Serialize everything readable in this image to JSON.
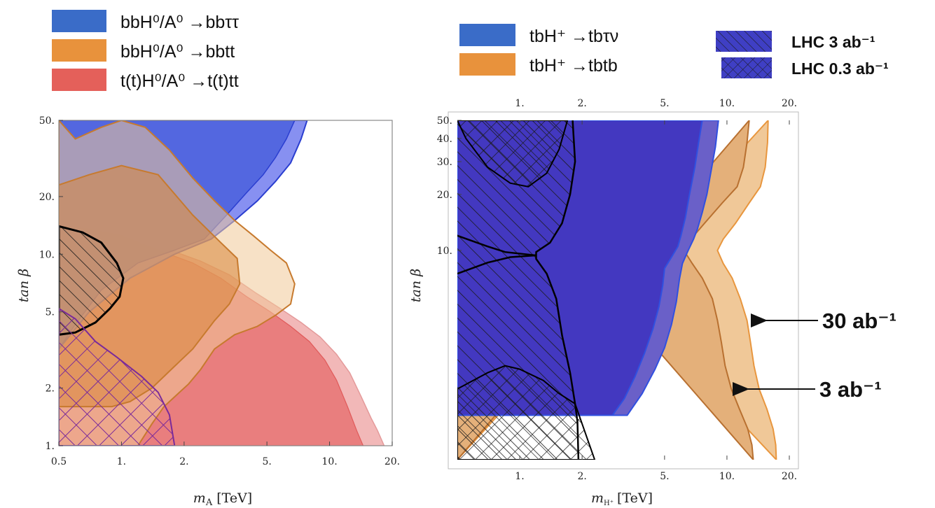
{
  "colors": {
    "blue": "#4a60dd",
    "blue_light": "#7a84f0",
    "blue_dark": "#3f3fc4",
    "orange": "#d9873a",
    "orange_light": "#f0c898",
    "red": "#e87a7a",
    "red_light": "#f2b8b8",
    "hatch": "#1a1a1a",
    "hatch_purple": "#7a2a9a",
    "legend_blue": "#3a6cc8",
    "legend_orange": "#e8923c",
    "legend_red": "#e4605a"
  },
  "chart_data": [
    {
      "type": "area",
      "xlabel": "m_A [TeV]",
      "ylabel": "tan β",
      "x_scale": "log",
      "y_scale": "log",
      "xlim": [
        0.5,
        20
      ],
      "ylim": [
        1,
        50
      ],
      "x_ticks": [
        "0.5",
        "1.",
        "2.",
        "5.",
        "10.",
        "20."
      ],
      "x_tick_values": [
        0.5,
        1,
        2,
        5,
        10,
        20
      ],
      "y_ticks": [
        "1.",
        "2.",
        "5.",
        "10.",
        "20.",
        "50."
      ],
      "y_tick_values": [
        1,
        2,
        5,
        10,
        20,
        50
      ],
      "legend_placement": "top",
      "series": [
        {
          "name": "bbH⁰/A⁰ →bbττ",
          "color_key": "blue",
          "boundary_3ab": [
            [
              0.5,
              3.2
            ],
            [
              0.6,
              4.3
            ],
            [
              0.8,
              6.5
            ],
            [
              1.2,
              9
            ],
            [
              1.8,
              10.5
            ],
            [
              2.5,
              12
            ],
            [
              3.2,
              16
            ],
            [
              4,
              21
            ],
            [
              4.8,
              26
            ],
            [
              5.5,
              32
            ],
            [
              6.2,
              40
            ],
            [
              6.8,
              50
            ]
          ],
          "boundary_30ab": [
            [
              0.5,
              3.2
            ],
            [
              0.7,
              5
            ],
            [
              1.1,
              7.5
            ],
            [
              1.8,
              10
            ],
            [
              2.7,
              12
            ],
            [
              3.5,
              15
            ],
            [
              4.5,
              19
            ],
            [
              5.5,
              24
            ],
            [
              6.5,
              30
            ],
            [
              7.3,
              40
            ],
            [
              7.8,
              50
            ]
          ]
        },
        {
          "name": "bbH⁰/A⁰ →bbtt",
          "color_key": "orange",
          "boundary_3ab": [
            [
              0.5,
              23
            ],
            [
              0.7,
              26
            ],
            [
              1,
              29
            ],
            [
              1.5,
              26
            ],
            [
              2.2,
              16
            ],
            [
              3,
              11.5
            ],
            [
              3.6,
              9.5
            ],
            [
              3.7,
              7
            ],
            [
              3.3,
              5.5
            ],
            [
              2.8,
              4.5
            ],
            [
              2.2,
              3.2
            ],
            [
              1.8,
              2.6
            ],
            [
              1.4,
              2.0
            ],
            [
              1.1,
              1.7
            ],
            [
              0.9,
              1.6
            ],
            [
              0.7,
              1.6
            ],
            [
              0.5,
              1.6
            ]
          ],
          "boundary_30ab": [
            [
              0.5,
              50
            ],
            [
              0.6,
              40
            ],
            [
              0.8,
              46
            ],
            [
              1,
              50
            ],
            [
              1.3,
              46
            ],
            [
              1.7,
              35
            ],
            [
              2.2,
              25
            ],
            [
              2.8,
              19
            ],
            [
              3.5,
              15
            ],
            [
              4.3,
              12.5
            ],
            [
              5.2,
              10.5
            ],
            [
              6.2,
              9
            ],
            [
              6.8,
              7
            ],
            [
              6.5,
              5.5
            ],
            [
              5.5,
              4.8
            ],
            [
              4.5,
              4.2
            ],
            [
              3.5,
              3.8
            ],
            [
              2.8,
              3.2
            ],
            [
              2.4,
              2.5
            ],
            [
              2.1,
              2.1
            ],
            [
              1.8,
              1.8
            ],
            [
              1.6,
              1.6
            ],
            [
              1.4,
              1.3
            ],
            [
              1.2,
              1
            ]
          ]
        },
        {
          "name": "t(t)H⁰/A⁰ →t(t)tt",
          "color_key": "red",
          "boundary_3ab": [
            [
              0.5,
              14
            ],
            [
              0.7,
              13.5
            ],
            [
              1,
              12.5
            ],
            [
              1.5,
              10.5
            ],
            [
              2.2,
              9
            ],
            [
              3,
              7.5
            ],
            [
              4,
              6
            ],
            [
              5.2,
              5
            ],
            [
              6.5,
              4.2
            ],
            [
              8,
              3.5
            ],
            [
              9.5,
              2.8
            ],
            [
              10.8,
              2.2
            ],
            [
              12.2,
              1.6
            ],
            [
              13.5,
              1.2
            ],
            [
              14.5,
              1
            ]
          ],
          "boundary_30ab": [
            [
              0.5,
              14
            ],
            [
              0.7,
              13.5
            ],
            [
              1,
              12.5
            ],
            [
              1.6,
              10.8
            ],
            [
              2.4,
              9.2
            ],
            [
              3.3,
              7.8
            ],
            [
              4.4,
              6.3
            ],
            [
              5.8,
              5.2
            ],
            [
              7.3,
              4.4
            ],
            [
              9,
              3.7
            ],
            [
              10.8,
              3
            ],
            [
              12.5,
              2.4
            ],
            [
              14.2,
              1.8
            ],
            [
              15.8,
              1.4
            ],
            [
              17,
              1.2
            ],
            [
              18.3,
              1
            ]
          ]
        }
      ],
      "hatched_regions": [
        {
          "style": "diagonal",
          "color_key": "hatch",
          "boundary": [
            [
              0.5,
              14
            ],
            [
              0.65,
              13
            ],
            [
              0.8,
              11.5
            ],
            [
              0.95,
              9
            ],
            [
              1.02,
              7.5
            ],
            [
              0.98,
              6
            ],
            [
              0.88,
              5.2
            ],
            [
              0.75,
              4.4
            ],
            [
              0.6,
              3.9
            ],
            [
              0.5,
              3.8
            ]
          ]
        },
        {
          "style": "crosshatch",
          "color_key": "hatch_purple",
          "boundary": [
            [
              0.5,
              5.2
            ],
            [
              0.6,
              4.6
            ],
            [
              0.75,
              3.5
            ],
            [
              0.95,
              2.9
            ],
            [
              1.25,
              2.3
            ],
            [
              1.5,
              1.9
            ],
            [
              1.7,
              1.45
            ],
            [
              1.8,
              1
            ]
          ]
        }
      ]
    },
    {
      "type": "area",
      "xlabel": "m_{H⁺} [TeV]",
      "ylabel": "tan β",
      "x_scale": "log",
      "y_scale": "log",
      "xlim": [
        0.5,
        20
      ],
      "ylim": [
        1,
        50
      ],
      "x_ticks": [
        "1.",
        "2.",
        "5.",
        "10.",
        "20."
      ],
      "x_tick_values": [
        1,
        2,
        5,
        10,
        20
      ],
      "y_ticks": [
        "10.",
        "20.",
        "30.",
        "40.",
        "50."
      ],
      "y_tick_values": [
        10,
        20,
        30,
        40,
        50
      ],
      "legend_placement": "top",
      "series": [
        {
          "name": "tbH⁺ →tbτν",
          "color_key": "blue_dark",
          "boundary_3ab": [
            [
              2.8,
              1.3
            ],
            [
              3.2,
              1.6
            ],
            [
              3.6,
              2.1
            ],
            [
              4,
              2.8
            ],
            [
              4.4,
              3.8
            ],
            [
              4.7,
              5
            ],
            [
              4.9,
              6.5
            ],
            [
              5,
              8
            ],
            [
              5.4,
              9.2
            ],
            [
              5.8,
              10.5
            ],
            [
              6,
              12
            ],
            [
              6.3,
              15
            ],
            [
              6.6,
              20
            ],
            [
              7,
              28
            ],
            [
              7.3,
              38
            ],
            [
              7.6,
              50
            ]
          ],
          "boundary_30ab": [
            [
              3.3,
              1.3
            ],
            [
              3.9,
              1.7
            ],
            [
              4.5,
              2.3
            ],
            [
              5,
              3
            ],
            [
              5.4,
              4
            ],
            [
              5.7,
              5.3
            ],
            [
              5.9,
              7
            ],
            [
              6.1,
              8.5
            ],
            [
              6.5,
              10
            ],
            [
              6.9,
              11.5
            ],
            [
              7.2,
              13
            ],
            [
              7.6,
              16
            ],
            [
              8,
              20
            ],
            [
              8.4,
              27
            ],
            [
              8.8,
              36
            ],
            [
              9.1,
              50
            ]
          ]
        },
        {
          "name": "tbH⁺ →tbtb",
          "color_key": "orange",
          "boundary_3ab": [
            [
              13.4,
              0.75
            ],
            [
              13.2,
              0.9
            ],
            [
              12.6,
              1.1
            ],
            [
              11.5,
              1.4
            ],
            [
              10.5,
              1.8
            ],
            [
              9.8,
              2.4
            ],
            [
              9.4,
              3.2
            ],
            [
              9,
              4.2
            ],
            [
              8.5,
              5.5
            ],
            [
              7.6,
              7.1
            ],
            [
              6.8,
              8.5
            ],
            [
              6.2,
              10
            ],
            [
              6.7,
              11.5
            ],
            [
              7.8,
              14
            ],
            [
              9.5,
              18
            ],
            [
              11.2,
              22
            ],
            [
              12,
              28
            ],
            [
              12.5,
              38
            ],
            [
              12.8,
              50
            ]
          ],
          "boundary_30ab": [
            [
              17.3,
              0.75
            ],
            [
              17.2,
              0.9
            ],
            [
              16.7,
              1.1
            ],
            [
              15.6,
              1.4
            ],
            [
              14.3,
              1.8
            ],
            [
              13.5,
              2.4
            ],
            [
              13,
              3.2
            ],
            [
              12.5,
              4.2
            ],
            [
              11.6,
              5.5
            ],
            [
              10.6,
              7.1
            ],
            [
              9.6,
              8.5
            ],
            [
              9,
              10
            ],
            [
              9.6,
              11.5
            ],
            [
              11,
              14
            ],
            [
              12.8,
              18
            ],
            [
              14.5,
              22
            ],
            [
              15.3,
              28
            ],
            [
              15.7,
              38
            ],
            [
              15.8,
              50
            ]
          ]
        }
      ],
      "hatched_regions": [
        {
          "style": "diagonal",
          "label": "LHC 3 ab⁻¹",
          "color_key": "hatch"
        },
        {
          "style": "crosshatch",
          "label": "LHC 0.3 ab⁻¹",
          "color_key": "hatch"
        }
      ],
      "annotations": [
        {
          "text": "30 ab⁻¹",
          "points_to": [
            14.6,
            3.4
          ]
        },
        {
          "text": "3 ab⁻¹",
          "points_to": [
            10.6,
            2.0
          ]
        }
      ]
    }
  ],
  "legend_left": [
    {
      "label": "bbH⁰/A⁰ →bbττ",
      "color_key": "legend_blue"
    },
    {
      "label": "bbH⁰/A⁰ →bbtt",
      "color_key": "legend_orange"
    },
    {
      "label": "t(t)H⁰/A⁰ →t(t)tt",
      "color_key": "legend_red"
    }
  ],
  "legend_right": [
    {
      "label": "tbH⁺ →tbτν",
      "color_key": "legend_blue"
    },
    {
      "label": "tbH⁺ →tbtb",
      "color_key": "legend_orange"
    }
  ],
  "legend_lhc": [
    {
      "label": "LHC 3 ab⁻¹",
      "style": "diagonal"
    },
    {
      "label": "LHC 0.3 ab⁻¹",
      "style": "crosshatch"
    }
  ],
  "left_axis": {
    "xlabel_main": "m",
    "xlabel_sub": "A",
    "xlabel_unit": "[TeV]",
    "ylabel": "tan β"
  },
  "right_axis": {
    "xlabel_main": "m",
    "xlabel_sub": "H⁺",
    "xlabel_unit": "[TeV]",
    "ylabel": "tan β"
  },
  "annotations": {
    "a30": "30 ab⁻¹",
    "a3": "3 ab⁻¹"
  }
}
